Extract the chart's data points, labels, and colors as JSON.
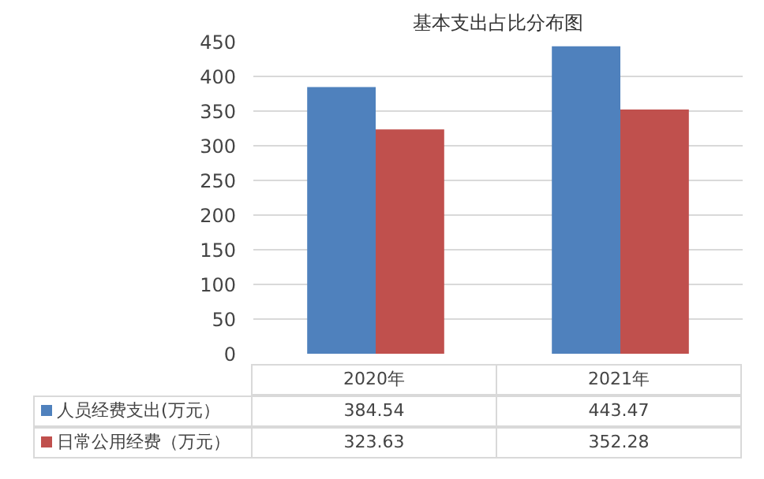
{
  "chart_data": {
    "type": "bar",
    "title": "基本支出占比分布图",
    "categories": [
      "2020年",
      "2021年"
    ],
    "series": [
      {
        "name": "人员经费支出(万元）",
        "color": "#4f81bd",
        "values": [
          384.54,
          443.47
        ]
      },
      {
        "name": "日常公用经费（万元）",
        "color": "#c0504d",
        "values": [
          323.63,
          352.28
        ]
      }
    ],
    "ylim": [
      0,
      450
    ],
    "yticks": [
      0,
      50,
      100,
      150,
      200,
      250,
      300,
      350,
      400,
      450
    ],
    "grid": "y",
    "legend": "bottom",
    "data_labels": true
  }
}
